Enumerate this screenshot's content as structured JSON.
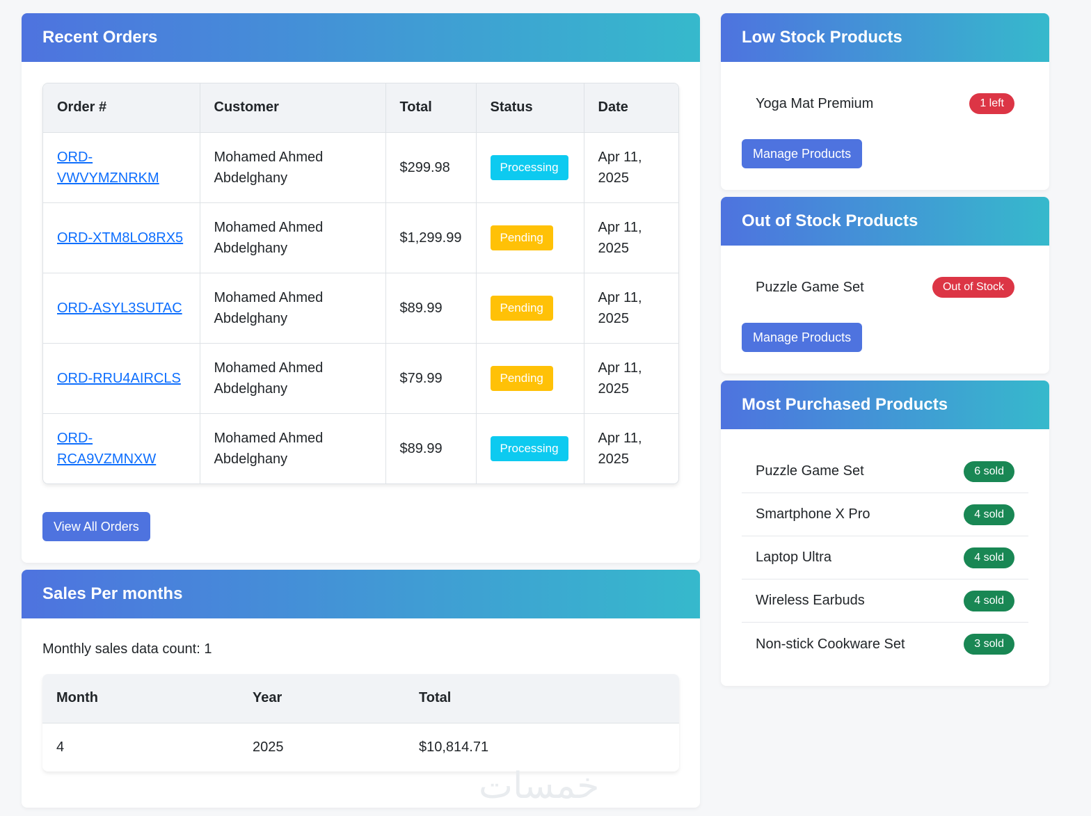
{
  "recent_orders": {
    "title": "Recent Orders",
    "columns": [
      "Order #",
      "Customer",
      "Total",
      "Status",
      "Date"
    ],
    "rows": [
      {
        "order": "ORD-VWVYMZNRKM",
        "customer": "Mohamed Ahmed Abdelghany",
        "total": "$299.98",
        "status": "Processing",
        "date": "Apr 11, 2025"
      },
      {
        "order": "ORD-XTM8LO8RX5",
        "customer": "Mohamed Ahmed Abdelghany",
        "total": "$1,299.99",
        "status": "Pending",
        "date": "Apr 11, 2025"
      },
      {
        "order": "ORD-ASYL3SUTAC",
        "customer": "Mohamed Ahmed Abdelghany",
        "total": "$89.99",
        "status": "Pending",
        "date": "Apr 11, 2025"
      },
      {
        "order": "ORD-RRU4AIRCLS",
        "customer": "Mohamed Ahmed Abdelghany",
        "total": "$79.99",
        "status": "Pending",
        "date": "Apr 11, 2025"
      },
      {
        "order": "ORD-RCA9VZMNXW",
        "customer": "Mohamed Ahmed Abdelghany",
        "total": "$89.99",
        "status": "Processing",
        "date": "Apr 11, 2025"
      }
    ],
    "view_all_label": "View All Orders"
  },
  "sales": {
    "title": "Sales Per months",
    "count_text": "Monthly sales data count: 1",
    "columns": [
      "Month",
      "Year",
      "Total"
    ],
    "rows": [
      {
        "month": "4",
        "year": "2025",
        "total": "$10,814.71"
      }
    ]
  },
  "low_stock": {
    "title": "Low Stock Products",
    "items": [
      {
        "name": "Yoga Mat Premium",
        "badge": "1 left"
      }
    ],
    "button_label": "Manage Products"
  },
  "out_of_stock": {
    "title": "Out of Stock Products",
    "items": [
      {
        "name": "Puzzle Game Set",
        "badge": "Out of Stock"
      }
    ],
    "button_label": "Manage Products"
  },
  "most_purchased": {
    "title": "Most Purchased Products",
    "items": [
      {
        "name": "Puzzle Game Set",
        "badge": "6 sold"
      },
      {
        "name": "Smartphone X Pro",
        "badge": "4 sold"
      },
      {
        "name": "Laptop Ultra",
        "badge": "4 sold"
      },
      {
        "name": "Wireless Earbuds",
        "badge": "4 sold"
      },
      {
        "name": "Non-stick Cookware Set",
        "badge": "3 sold"
      }
    ]
  },
  "watermark": "خمسات",
  "colors": {
    "header_gradient_start": "#4e73df",
    "header_gradient_end": "#36b9cc",
    "processing": "#0dcaf0",
    "pending": "#ffc107",
    "danger": "#dc3545",
    "success": "#198754",
    "link": "#0d6efd"
  }
}
